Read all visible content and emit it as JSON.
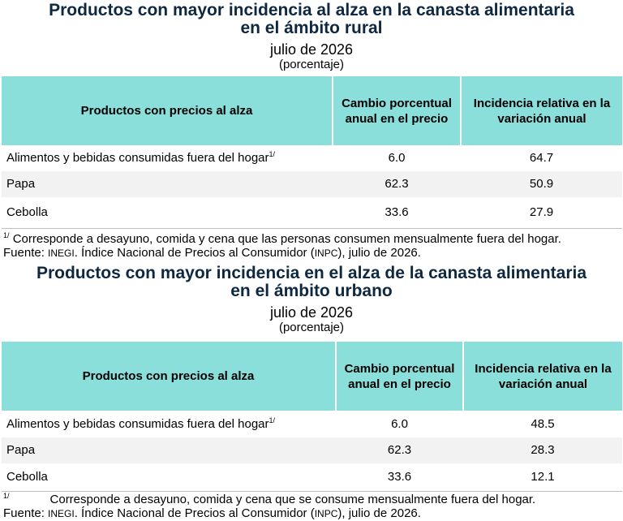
{
  "rural": {
    "title_line1": "Productos con mayor incidencia al alza en la canasta alimentaria",
    "title_line2": "en el ámbito rural",
    "period": "julio de 2026",
    "unit": "(porcentaje)",
    "headers": {
      "product": "Productos con precios al alza",
      "change": "Cambio porcentual anual en el precio",
      "incidence": "Incidencia relativa en la variación anual"
    },
    "rows": [
      {
        "product": "Alimentos y bebidas consumidas fuera del hogar",
        "note_mark": "1/",
        "change": "6.0",
        "incidence": "64.7"
      },
      {
        "product": "Papa",
        "change": "62.3",
        "incidence": "50.9"
      },
      {
        "product": "Cebolla",
        "change": "33.6",
        "incidence": "27.9"
      }
    ],
    "footnote_mark": "1/",
    "footnote_text": "Corresponde a desayuno, comida y cena que las personas consumen mensualmente fuera del hogar.",
    "source_label": "Fuente:",
    "source_inegi": "INEGI",
    "source_mid": ". Índice Nacional de Precios al Consumidor (",
    "source_inpc": "INPC",
    "source_end": "), julio de 2026."
  },
  "urban": {
    "title_line1": "Productos con mayor incidencia en el alza de la canasta alimentaria",
    "title_line2": "en el ámbito urbano",
    "period": "julio de 2026",
    "unit": "(porcentaje)",
    "headers": {
      "product": "Productos con precios al alza",
      "change": "Cambio porcentual anual en el precio",
      "incidence": "Incidencia relativa en la variación anual"
    },
    "rows": [
      {
        "product": "Alimentos y bebidas consumidas fuera del hogar",
        "note_mark": "1/",
        "change": "6.0",
        "incidence": "48.5"
      },
      {
        "product": "Papa",
        "change": "62.3",
        "incidence": "28.3"
      },
      {
        "product": "Cebolla",
        "change": "33.6",
        "incidence": "12.1"
      }
    ],
    "footnote_mark": "1/",
    "footnote_text": "Corresponde a desayuno, comida y cena que se consume mensualmente fuera del hogar.",
    "source_label": "Fuente:",
    "source_inegi": "INEGI",
    "source_mid": ". Índice Nacional de Precios al Consumidor (",
    "source_inpc": "INPC",
    "source_end": "), julio de 2026."
  }
}
